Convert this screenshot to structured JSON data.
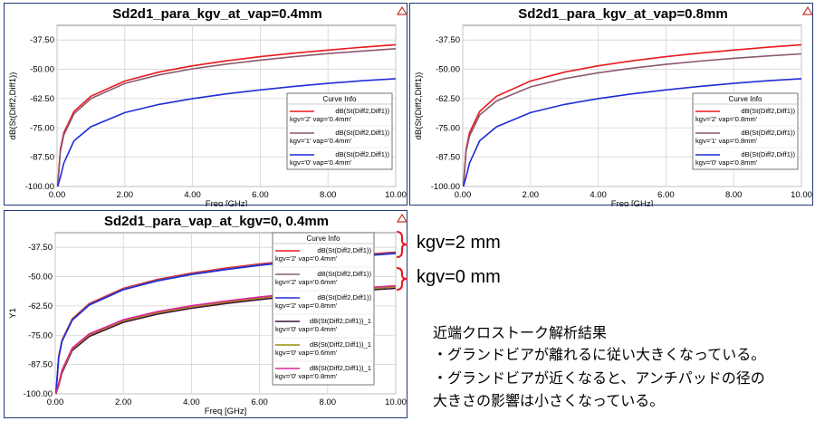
{
  "chart_data": [
    {
      "type": "line",
      "title": "Sd2d1_para_kgv_at_vap=0.4mm",
      "xlabel": "Freq [GHz]",
      "ylabel": "dB(St(Diff2,Diff1))",
      "xlim": [
        0,
        10
      ],
      "ylim": [
        -100,
        -31.25
      ],
      "xticks": [
        "0.00",
        "2.00",
        "4.00",
        "6.00",
        "8.00",
        "10.00"
      ],
      "yticks": [
        "-37.50",
        "-50.00",
        "-62.50",
        "-75.00",
        "-87.50",
        "-100.00"
      ],
      "grid": true,
      "legend_title": "Curve Info",
      "legend_position": "right",
      "series": [
        {
          "name": "dB(St(Diff2,Diff1))",
          "label2": "kgv='2' vap='0.4mm'",
          "color": "#e8191f",
          "x": [
            0.02,
            0.1,
            0.2,
            0.5,
            1,
            2,
            3,
            4,
            5,
            6,
            7,
            8,
            9,
            10
          ],
          "values": [
            -100,
            -84,
            -77,
            -68,
            -61.5,
            -55,
            -51.2,
            -48.5,
            -46.4,
            -44.6,
            -43.1,
            -41.8,
            -40.6,
            -39.5
          ]
        },
        {
          "name": "dB(St(Diff2,Diff1))",
          "label2": "kgv='1' vap='0.4mm'",
          "color": "#8b5a6e",
          "x": [
            0.02,
            0.1,
            0.2,
            0.5,
            1,
            2,
            3,
            4,
            5,
            6,
            7,
            8,
            9,
            10
          ],
          "values": [
            -100,
            -85,
            -78,
            -69,
            -62.5,
            -56,
            -52.4,
            -49.8,
            -47.8,
            -46.1,
            -44.6,
            -43.3,
            -42.2,
            -41.2
          ]
        },
        {
          "name": "dB(St(Diff2,Diff1))",
          "label2": "kgv='0' vap='0.4mm'",
          "color": "#1f2bd6",
          "x": [
            0.02,
            0.1,
            0.2,
            0.5,
            1,
            2,
            3,
            4,
            5,
            6,
            7,
            8,
            9,
            10
          ],
          "values": [
            -100,
            -96,
            -90,
            -80.5,
            -74.5,
            -68.5,
            -65,
            -62.5,
            -60.5,
            -58.8,
            -57.3,
            -56,
            -54.9,
            -54
          ]
        }
      ]
    },
    {
      "type": "line",
      "title": "Sd2d1_para_kgv_at_vap=0.8mm",
      "xlabel": "Freq [GHz]",
      "ylabel": "dB(St(Diff2,Diff1))",
      "xlim": [
        0,
        10
      ],
      "ylim": [
        -100,
        -31.25
      ],
      "xticks": [
        "0.00",
        "2.00",
        "4.00",
        "6.00",
        "8.00",
        "10.00"
      ],
      "yticks": [
        "-37.50",
        "-50.00",
        "-62.50",
        "-75.00",
        "-87.50",
        "-100.00"
      ],
      "grid": true,
      "legend_title": "Curve Info",
      "legend_position": "right",
      "series": [
        {
          "name": "dB(St(Diff2,Diff1))",
          "label2": "kgv='2' vap='0.8mm'",
          "color": "#e8191f",
          "x": [
            0.02,
            0.1,
            0.2,
            0.5,
            1,
            2,
            3,
            4,
            5,
            6,
            7,
            8,
            9,
            10
          ],
          "values": [
            -100,
            -84,
            -77,
            -68,
            -61.5,
            -55,
            -51.2,
            -48.5,
            -46.4,
            -44.6,
            -43.1,
            -41.8,
            -40.6,
            -39.5
          ]
        },
        {
          "name": "dB(St(Diff2,Diff1))",
          "label2": "kgv='1' vap='0.8mm'",
          "color": "#8b5a6e",
          "x": [
            0.02,
            0.1,
            0.2,
            0.5,
            1,
            2,
            3,
            4,
            5,
            6,
            7,
            8,
            9,
            10
          ],
          "values": [
            -100,
            -85,
            -78.5,
            -69.5,
            -63.5,
            -57.5,
            -54,
            -51.5,
            -49.5,
            -47.9,
            -46.5,
            -45.3,
            -44.3,
            -43.4
          ]
        },
        {
          "name": "dB(St(Diff2,Diff1))",
          "label2": "kgv='0' vap='0.8mm'",
          "color": "#1f2bd6",
          "x": [
            0.02,
            0.1,
            0.2,
            0.5,
            1,
            2,
            3,
            4,
            5,
            6,
            7,
            8,
            9,
            10
          ],
          "values": [
            -100,
            -96,
            -90,
            -80.5,
            -74.5,
            -68.5,
            -65,
            -62.5,
            -60.5,
            -58.8,
            -57.3,
            -56,
            -54.9,
            -54
          ]
        }
      ]
    },
    {
      "type": "line",
      "title": "Sd2d1_para_vap_at_kgv=0, 0.4mm",
      "xlabel": "Freq [GHz]",
      "ylabel": "Y1",
      "xlim": [
        0,
        10
      ],
      "ylim": [
        -100,
        -31.25
      ],
      "xticks": [
        "0.00",
        "2.00",
        "4.00",
        "6.00",
        "8.00",
        "10.00"
      ],
      "yticks": [
        "-37.50",
        "-50.00",
        "-62.50",
        "-75.00",
        "-87.50",
        "-100.00"
      ],
      "grid": true,
      "legend_title": "Curve Info",
      "legend_position": "right",
      "series": [
        {
          "name": "dB(St(Diff2,Diff1))",
          "label2": "kgv='2' vap='0.4mm'",
          "color": "#e8191f",
          "x": [
            0.02,
            0.1,
            0.2,
            0.5,
            1,
            2,
            3,
            4,
            5,
            6,
            7,
            8,
            9,
            10
          ],
          "values": [
            -100,
            -84,
            -77,
            -68,
            -61.5,
            -55,
            -51.2,
            -48.5,
            -46.4,
            -44.6,
            -43.1,
            -41.8,
            -40.6,
            -39.5
          ]
        },
        {
          "name": "dB(St(Diff2,Diff1))",
          "label2": "kgv='2' vap='0.6mm'",
          "color": "#8b5a6e",
          "x": [
            0.02,
            0.1,
            0.2,
            0.5,
            1,
            2,
            3,
            4,
            5,
            6,
            7,
            8,
            9,
            10
          ],
          "values": [
            -100,
            -84.3,
            -77.3,
            -68.3,
            -61.8,
            -55.3,
            -51.5,
            -48.8,
            -46.7,
            -44.9,
            -43.4,
            -42.1,
            -40.9,
            -39.8
          ]
        },
        {
          "name": "dB(St(Diff2,Diff1))",
          "label2": "kgv='2' vap='0.8mm'",
          "color": "#1f2bd6",
          "x": [
            0.02,
            0.1,
            0.2,
            0.5,
            1,
            2,
            3,
            4,
            5,
            6,
            7,
            8,
            9,
            10
          ],
          "values": [
            -100,
            -84.6,
            -77.6,
            -68.6,
            -62.1,
            -55.6,
            -51.8,
            -49.1,
            -47,
            -45.2,
            -43.7,
            -42.4,
            -41.2,
            -40.1
          ]
        },
        {
          "name": "dB(St(Diff2,Diff1))_1",
          "label2": "kgv='0' vap='0.4mm'",
          "color": "#3d0f3a",
          "x": [
            0.02,
            0.1,
            0.2,
            0.5,
            1,
            2,
            3,
            4,
            5,
            6,
            7,
            8,
            9,
            10
          ],
          "values": [
            -100,
            -96.5,
            -91,
            -81.5,
            -75.5,
            -69.5,
            -66,
            -63.5,
            -61.5,
            -59.8,
            -58.3,
            -57,
            -55.9,
            -55
          ]
        },
        {
          "name": "dB(St(Diff2,Diff1))_1",
          "label2": "kgv='0' vap='0.6mm'",
          "color": "#9a8a14",
          "x": [
            0.02,
            0.1,
            0.2,
            0.5,
            1,
            2,
            3,
            4,
            5,
            6,
            7,
            8,
            9,
            10
          ],
          "values": [
            -100,
            -96,
            -90.3,
            -80.9,
            -74.9,
            -68.9,
            -65.4,
            -62.9,
            -60.9,
            -59.2,
            -57.7,
            -56.4,
            -55.3,
            -54.4
          ]
        },
        {
          "name": "dB(St(Diff2,Diff1))_1",
          "label2": "kgv='0' vap='0.8mm'",
          "color": "#e0249a",
          "x": [
            0.02,
            0.1,
            0.2,
            0.5,
            1,
            2,
            3,
            4,
            5,
            6,
            7,
            8,
            9,
            10
          ],
          "values": [
            -100,
            -95.5,
            -89.8,
            -80.4,
            -74.4,
            -68.4,
            -64.9,
            -62.4,
            -60.4,
            -58.7,
            -57.2,
            -55.9,
            -54.8,
            -53.9
          ]
        }
      ]
    }
  ],
  "callouts": {
    "kgv2": "kgv=2 mm",
    "kgv0": "kgv=0 mm"
  },
  "notes": {
    "line1": "近端クロストーク解析結果",
    "line2": "・グランドビアが離れるに従い大きくなっている。",
    "line3": "・グランドビアが近くなると、アンチパッドの径の",
    "line4": "大きさの影響は小さくなっている。"
  },
  "logo_icon": "ansoft-a-icon"
}
